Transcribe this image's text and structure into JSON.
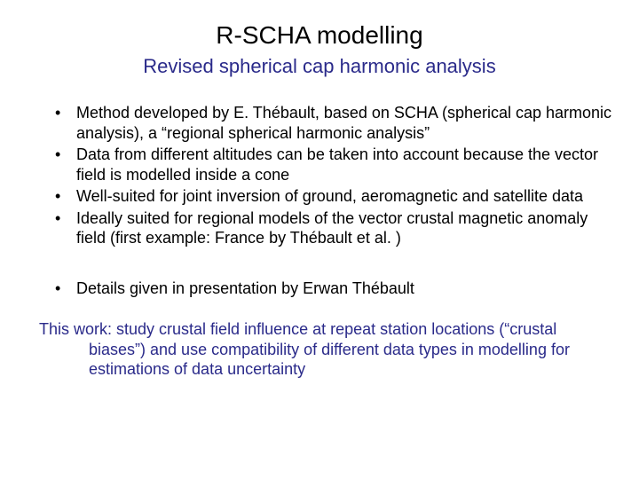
{
  "title": "R-SCHA modelling",
  "subtitle": "Revised spherical cap harmonic analysis",
  "subtitle_color": "#2a2a8a",
  "bullets_group1": [
    "Method developed by E. Thébault, based on SCHA (spherical cap harmonic analysis), a “regional spherical harmonic analysis”",
    "Data from different altitudes can be taken into account because the vector field is modelled inside a cone",
    "Well-suited for joint inversion of ground, aeromagnetic and satellite data",
    "Ideally suited for regional models of the vector crustal magnetic anomaly field (first example: France by Thébault et al. )"
  ],
  "bullets_group2": [
    "Details given in presentation by Erwan Thébault"
  ],
  "closing_text": "This work: study crustal field influence at repeat station locations (“crustal biases”) and use compatibility of different data types in modelling for estimations of data uncertainty",
  "closing_color": "#2a2a8a",
  "background_color": "#ffffff",
  "text_color": "#000000",
  "title_fontsize": 28,
  "subtitle_fontsize": 22,
  "body_fontsize": 18
}
